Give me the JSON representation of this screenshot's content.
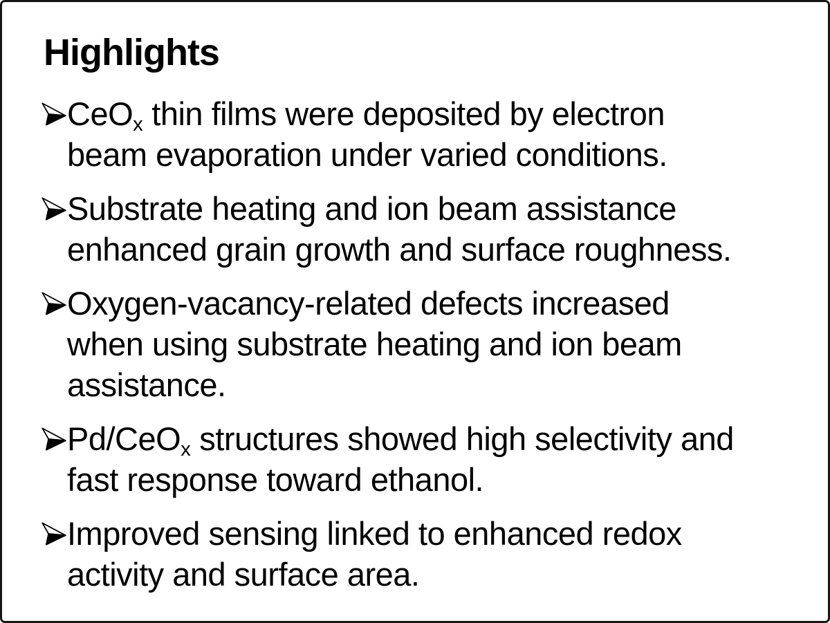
{
  "page": {
    "background": "#ffffff",
    "border_color": "#161616",
    "text_color": "#000000",
    "title": "Highlights",
    "bullet_icon": "three-d-rightwards-arrowhead"
  },
  "bullets": [
    {
      "lines": [
        [
          {
            "t": "CeO"
          },
          {
            "t": "x",
            "sub": true
          },
          {
            "t": " thin films were deposited by electron"
          }
        ],
        [
          {
            "t": "beam evaporation under varied conditions."
          }
        ]
      ]
    },
    {
      "lines": [
        [
          {
            "t": "Substrate heating and ion beam assistance"
          }
        ],
        [
          {
            "t": "enhanced grain growth and surface roughness."
          }
        ]
      ]
    },
    {
      "lines": [
        [
          {
            "t": "Oxygen-vacancy-related defects increased"
          }
        ],
        [
          {
            "t": "when using substrate heating and ion beam"
          }
        ],
        [
          {
            "t": "assistance."
          }
        ]
      ]
    },
    {
      "lines": [
        [
          {
            "t": "Pd/CeO"
          },
          {
            "t": "x",
            "sub": true
          },
          {
            "t": " structures showed high selectivity and"
          }
        ],
        [
          {
            "t": "fast response toward ethanol."
          }
        ]
      ]
    },
    {
      "lines": [
        [
          {
            "t": "Improved sensing linked to enhanced redox"
          }
        ],
        [
          {
            "t": "activity and surface area."
          }
        ]
      ]
    }
  ]
}
